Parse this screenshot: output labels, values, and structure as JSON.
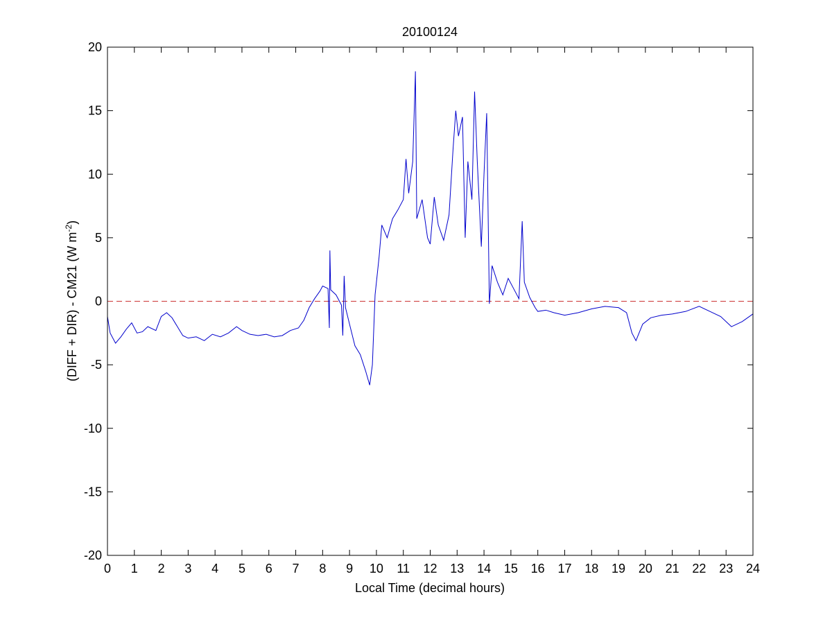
{
  "chart_data": {
    "type": "line",
    "title": "20100124",
    "xlabel": "Local Time (decimal hours)",
    "ylabel": {
      "text": "(DIFF + DIR) - CM21 (W m",
      "sup": "-2",
      "end": ")"
    },
    "x": [
      0,
      0.1,
      0.3,
      0.5,
      0.7,
      0.9,
      1.1,
      1.3,
      1.5,
      1.8,
      2.0,
      2.2,
      2.4,
      2.6,
      2.8,
      3.0,
      3.3,
      3.6,
      3.9,
      4.2,
      4.5,
      4.8,
      5.0,
      5.3,
      5.6,
      5.9,
      6.2,
      6.5,
      6.8,
      7.1,
      7.3,
      7.5,
      7.7,
      7.9,
      8.0,
      8.2,
      8.25,
      8.27,
      8.3,
      8.5,
      8.7,
      8.75,
      8.8,
      8.85,
      9.0,
      9.2,
      9.4,
      9.6,
      9.75,
      9.85,
      9.95,
      10.1,
      10.2,
      10.4,
      10.6,
      10.8,
      11.0,
      11.1,
      11.2,
      11.35,
      11.45,
      11.5,
      11.7,
      11.9,
      12.0,
      12.15,
      12.3,
      12.5,
      12.7,
      12.85,
      12.95,
      13.05,
      13.2,
      13.3,
      13.4,
      13.55,
      13.65,
      13.75,
      13.9,
      14.0,
      14.1,
      14.2,
      14.3,
      14.5,
      14.7,
      14.9,
      15.1,
      15.3,
      15.42,
      15.5,
      15.7,
      15.9,
      16.0,
      16.3,
      16.6,
      17.0,
      17.5,
      18.0,
      18.5,
      19.0,
      19.3,
      19.5,
      19.65,
      19.9,
      20.2,
      20.6,
      21.0,
      21.5,
      22.0,
      22.4,
      22.8,
      23.2,
      23.6,
      24.0
    ],
    "series": [
      {
        "color": "#0000cc",
        "values": [
          -1.2,
          -2.5,
          -3.3,
          -2.8,
          -2.2,
          -1.7,
          -2.5,
          -2.4,
          -2.0,
          -2.3,
          -1.2,
          -0.9,
          -1.3,
          -2.0,
          -2.7,
          -2.9,
          -2.8,
          -3.1,
          -2.6,
          -2.8,
          -2.5,
          -2.0,
          -2.3,
          -2.6,
          -2.7,
          -2.6,
          -2.8,
          -2.7,
          -2.3,
          -2.1,
          -1.5,
          -0.5,
          0.2,
          0.8,
          1.2,
          1.0,
          -2.1,
          4.0,
          0.9,
          0.5,
          -0.3,
          -2.7,
          2.0,
          -0.5,
          -1.8,
          -3.5,
          -4.2,
          -5.5,
          -6.6,
          -5.0,
          0.5,
          3.5,
          6.0,
          5.0,
          6.5,
          7.2,
          8.0,
          11.2,
          8.5,
          11.0,
          18.1,
          6.5,
          8.0,
          5.0,
          4.5,
          8.2,
          6.0,
          4.8,
          6.8,
          12.0,
          15.0,
          13.0,
          14.5,
          5.0,
          11.0,
          8.0,
          16.5,
          11.0,
          4.3,
          10.0,
          14.8,
          -0.2,
          2.8,
          1.5,
          0.5,
          1.8,
          1.0,
          0.2,
          6.3,
          1.5,
          0.3,
          -0.5,
          -0.8,
          -0.7,
          -0.9,
          -1.1,
          -0.9,
          -0.6,
          -0.4,
          -0.5,
          -0.9,
          -2.5,
          -3.1,
          -1.8,
          -1.3,
          -1.1,
          -1.0,
          -0.8,
          -0.4,
          -0.8,
          -1.2,
          -2.0,
          -1.6,
          -1.0
        ]
      }
    ],
    "reference_line": {
      "y": 0,
      "color": "#cc3333",
      "style": "dashed"
    },
    "xlim": [
      0,
      24
    ],
    "xticks": [
      0,
      1,
      2,
      3,
      4,
      5,
      6,
      7,
      8,
      9,
      10,
      11,
      12,
      13,
      14,
      15,
      16,
      17,
      18,
      19,
      20,
      21,
      22,
      23,
      24
    ],
    "ylim": [
      -20,
      20
    ],
    "yticks": [
      -20,
      -15,
      -10,
      -5,
      0,
      5,
      10,
      15,
      20
    ],
    "grid": false
  }
}
